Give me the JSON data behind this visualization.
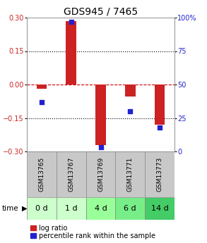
{
  "title": "GDS945 / 7465",
  "samples": [
    "GSM13765",
    "GSM13767",
    "GSM13769",
    "GSM13771",
    "GSM13773"
  ],
  "time_labels": [
    "0 d",
    "1 d",
    "4 d",
    "6 d",
    "14 d"
  ],
  "log_ratios": [
    -0.02,
    0.285,
    -0.27,
    -0.055,
    -0.18
  ],
  "percentile_ranks": [
    37,
    97,
    3,
    30,
    18
  ],
  "ylim_left": [
    -0.3,
    0.3
  ],
  "ylim_right": [
    0,
    100
  ],
  "yticks_left": [
    -0.3,
    -0.15,
    0,
    0.15,
    0.3
  ],
  "yticks_right": [
    0,
    25,
    50,
    75,
    100
  ],
  "bar_color": "#cc2222",
  "dot_color": "#2222cc",
  "dashed_zero_color": "#cc0000",
  "bg_color": "#ffffff",
  "plot_bg": "#ffffff",
  "gsm_bg": "#c8c8c8",
  "time_bg_colors": [
    "#ccffcc",
    "#ccffcc",
    "#99ff99",
    "#77ee88",
    "#44cc66"
  ],
  "bar_width": 0.35,
  "title_fontsize": 10,
  "tick_fontsize": 7,
  "legend_fontsize": 7,
  "time_fontsize": 8,
  "gsm_fontsize": 6.5
}
